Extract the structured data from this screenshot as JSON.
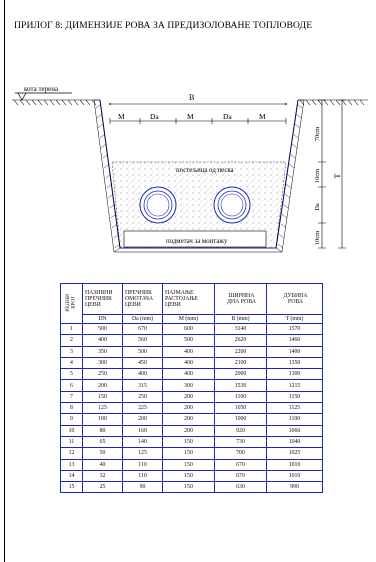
{
  "title": "ПРИЛОГ 8: ДИМЕНЗИЈЕ РОВА ЗА ПРЕДИЗОЛОВАНЕ ТОПЛОВОДЕ",
  "drawing": {
    "ground_label": "кота терена",
    "width_label": "B",
    "spacing_labels": [
      "M",
      "Da",
      "M",
      "Da",
      "M"
    ],
    "sand_label": "постељица од песка",
    "support_label": "подметач за монтажу",
    "depth_label": "T",
    "dim_top": "70cm",
    "dim_mid": "10cm",
    "dim_da": "Da",
    "dim_bottom": "10cm"
  },
  "table": {
    "headers": {
      "redni_line1": "РЕДНИ",
      "redni_line2": "БРОЈ",
      "col1_l1": "НАЗИВНИ",
      "col1_l2": "ПРЕЧНИК",
      "col1_l3": "ЦЕВИ",
      "col2_l1": "ПРЕЧНИК",
      "col2_l2": "ОМОТАЧА",
      "col2_l3": "ЦЕВИ",
      "col3_l1": "НАЈМАЊЕ",
      "col3_l2": "РАСТОЈАЊЕ",
      "col3_l3": "ЦЕВИ",
      "col4_l1": "ШИРИНА",
      "col4_l2": "ДНА РОВА",
      "col5_l1": "ДУБИНА",
      "col5_l2": "РОВА"
    },
    "units": [
      "DN",
      "Da (mm)",
      "M (mm)",
      "B (mm)",
      "T (mm)"
    ],
    "rows": [
      [
        "1",
        "500",
        "670",
        "600",
        "3140",
        "1570"
      ],
      [
        "2",
        "400",
        "560",
        "500",
        "2620",
        "1460"
      ],
      [
        "3",
        "350",
        "500",
        "400",
        "2200",
        "1400"
      ],
      [
        "4",
        "300",
        "450",
        "400",
        "2100",
        "1350"
      ],
      [
        "5",
        "250",
        "400",
        "400",
        "2000",
        "1300"
      ],
      [
        "6",
        "200",
        "315",
        "300",
        "1530",
        "1215"
      ],
      [
        "7",
        "150",
        "250",
        "200",
        "1100",
        "1150"
      ],
      [
        "8",
        "125",
        "225",
        "200",
        "1050",
        "1125"
      ],
      [
        "9",
        "100",
        "200",
        "200",
        "1000",
        "1100"
      ],
      [
        "10",
        "80",
        "160",
        "200",
        "920",
        "1060"
      ],
      [
        "11",
        "65",
        "140",
        "150",
        "730",
        "1040"
      ],
      [
        "12",
        "50",
        "125",
        "150",
        "700",
        "1025"
      ],
      [
        "13",
        "40",
        "110",
        "150",
        "670",
        "1010"
      ],
      [
        "14",
        "32",
        "110",
        "150",
        "670",
        "1010"
      ],
      [
        "15",
        "25",
        "90",
        "150",
        "630",
        "990"
      ]
    ]
  }
}
